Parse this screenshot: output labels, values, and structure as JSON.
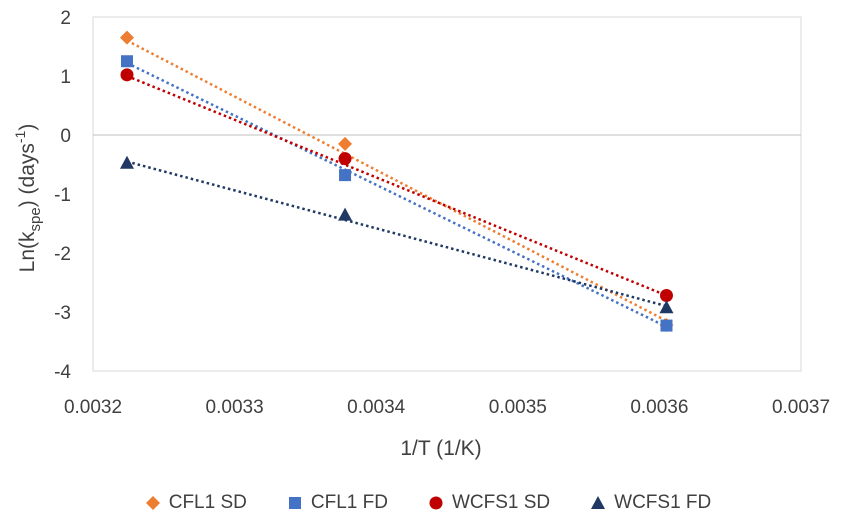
{
  "chart_data": {
    "type": "scatter",
    "xlabel": "1/T (1/K)",
    "ylabel": {
      "prefix": "Ln(k",
      "sub": "spe",
      "middle": ")  (days",
      "sup": "-1",
      "suffix": ")"
    },
    "xlim": [
      0.0032,
      0.0037
    ],
    "ylim": [
      -4,
      2
    ],
    "xticks": [
      "0.0032",
      "0.0033",
      "0.0034",
      "0.0035",
      "0.0036",
      "0.0037"
    ],
    "yticks": [
      "2",
      "1",
      "0",
      "-1",
      "-2",
      "-3",
      "-4"
    ],
    "grid": false,
    "zero_line": true,
    "legend_position": "bottom",
    "series": [
      {
        "name": "CFL1 SD",
        "marker": "diamond",
        "color": "#ED7D31",
        "x": [
          0.003224,
          0.003378,
          0.003605
        ],
        "y": [
          1.65,
          -0.15,
          -3.22
        ],
        "trendline": {
          "y_start": 1.6,
          "y_end": -3.15
        }
      },
      {
        "name": "CFL1 FD",
        "marker": "square",
        "color": "#4472C4",
        "x": [
          0.003224,
          0.003378,
          0.003605
        ],
        "y": [
          1.25,
          -0.68,
          -3.23
        ],
        "trendline": {
          "y_start": 1.22,
          "y_end": -3.25
        }
      },
      {
        "name": "WCFS1 SD",
        "marker": "circle",
        "color": "#C00000",
        "x": [
          0.003224,
          0.003378,
          0.003605
        ],
        "y": [
          1.02,
          -0.4,
          -2.72
        ],
        "trendline": {
          "y_start": 1.0,
          "y_end": -2.72
        }
      },
      {
        "name": "WCFS1 FD",
        "marker": "triangle",
        "color": "#1F3864",
        "x": [
          0.003224,
          0.003378,
          0.003605
        ],
        "y": [
          -0.47,
          -1.35,
          -2.92
        ],
        "trendline": {
          "y_start": -0.45,
          "y_end": -2.9
        }
      }
    ]
  }
}
